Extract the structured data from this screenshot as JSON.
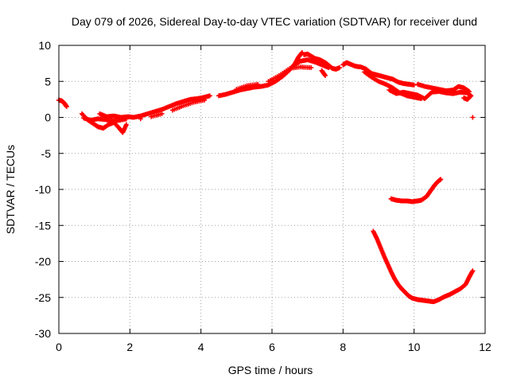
{
  "chart_data": {
    "type": "scatter",
    "title": "Day 079 of 2026, Sidereal Day-to-day VTEC variation (SDTVAR) for receiver dund",
    "xlabel": "GPS time / hours",
    "ylabel": "SDTVAR / TECUs",
    "xlim": [
      0,
      12
    ],
    "ylim": [
      -30,
      10
    ],
    "x_ticks": [
      0,
      2,
      4,
      6,
      8,
      10,
      12
    ],
    "y_ticks": [
      10,
      5,
      0,
      -5,
      -10,
      -15,
      -20,
      -25,
      -30
    ],
    "grid": true,
    "marker": "+",
    "color": "#ff0000",
    "series": [
      {
        "name": "SDTVAR",
        "points": [
          [
            0.0,
            2.4
          ],
          [
            0.08,
            2.3
          ],
          [
            0.15,
            2.0
          ],
          [
            0.22,
            1.5
          ],
          [
            0.65,
            0.5
          ],
          [
            0.8,
            -0.3
          ],
          [
            0.95,
            -0.8
          ],
          [
            1.1,
            -1.3
          ],
          [
            1.25,
            -1.5
          ],
          [
            1.4,
            -1.0
          ],
          [
            1.55,
            -0.7
          ],
          [
            1.7,
            -1.5
          ],
          [
            1.8,
            -2.1
          ],
          [
            1.9,
            -1.0
          ],
          [
            0.7,
            -0.1
          ],
          [
            0.9,
            -0.4
          ],
          [
            1.1,
            -0.2
          ],
          [
            1.3,
            -0.3
          ],
          [
            1.5,
            -0.5
          ],
          [
            1.7,
            -0.4
          ],
          [
            1.9,
            -0.2
          ],
          [
            1.15,
            0.5
          ],
          [
            1.35,
            0.1
          ],
          [
            1.55,
            0.2
          ],
          [
            1.75,
            0.0
          ],
          [
            1.95,
            0.1
          ],
          [
            2.1,
            0.0
          ],
          [
            2.3,
            0.2
          ],
          [
            2.5,
            0.5
          ],
          [
            2.7,
            0.8
          ],
          [
            2.9,
            1.1
          ],
          [
            3.1,
            1.5
          ],
          [
            3.3,
            1.9
          ],
          [
            3.5,
            2.2
          ],
          [
            3.7,
            2.5
          ],
          [
            3.9,
            2.6
          ],
          [
            4.1,
            2.8
          ],
          [
            4.25,
            3.0
          ],
          [
            2.3,
            -0.2
          ],
          [
            2.6,
            0.1
          ],
          [
            2.9,
            0.5
          ],
          [
            3.2,
            1.0
          ],
          [
            3.5,
            1.6
          ],
          [
            3.8,
            2.1
          ],
          [
            4.1,
            2.4
          ],
          [
            4.5,
            3.0
          ],
          [
            4.7,
            3.2
          ],
          [
            4.9,
            3.5
          ],
          [
            5.1,
            3.8
          ],
          [
            5.3,
            4.0
          ],
          [
            5.5,
            4.2
          ],
          [
            5.7,
            4.3
          ],
          [
            5.9,
            4.5
          ],
          [
            6.1,
            5.0
          ],
          [
            6.3,
            5.7
          ],
          [
            6.5,
            6.6
          ],
          [
            6.65,
            7.5
          ],
          [
            6.75,
            8.4
          ],
          [
            6.85,
            9.0
          ],
          [
            5.0,
            3.9
          ],
          [
            5.3,
            4.4
          ],
          [
            5.6,
            4.6
          ],
          [
            5.9,
            5.0
          ],
          [
            6.2,
            5.8
          ],
          [
            6.5,
            6.8
          ],
          [
            6.8,
            7.0
          ],
          [
            7.1,
            6.9
          ],
          [
            7.4,
            6.5
          ],
          [
            7.5,
            5.8
          ],
          [
            6.9,
            8.7
          ],
          [
            7.0,
            8.8
          ],
          [
            7.1,
            8.5
          ],
          [
            7.2,
            8.2
          ],
          [
            7.35,
            8.0
          ],
          [
            7.5,
            7.6
          ],
          [
            7.6,
            7.2
          ],
          [
            7.7,
            6.8
          ],
          [
            7.8,
            6.7
          ],
          [
            7.9,
            6.9
          ],
          [
            6.6,
            7.2
          ],
          [
            6.8,
            7.8
          ],
          [
            7.0,
            8.0
          ],
          [
            7.2,
            7.7
          ],
          [
            7.4,
            7.3
          ],
          [
            7.6,
            6.9
          ],
          [
            8.0,
            7.3
          ],
          [
            8.1,
            7.6
          ],
          [
            8.2,
            7.4
          ],
          [
            8.35,
            7.1
          ],
          [
            8.5,
            7.0
          ],
          [
            8.65,
            6.7
          ],
          [
            8.8,
            6.1
          ],
          [
            8.95,
            5.9
          ],
          [
            9.1,
            5.7
          ],
          [
            9.25,
            5.5
          ],
          [
            9.4,
            5.3
          ],
          [
            9.55,
            4.9
          ],
          [
            9.7,
            4.7
          ],
          [
            9.85,
            4.6
          ],
          [
            10.0,
            4.5
          ],
          [
            8.6,
            6.3
          ],
          [
            8.8,
            5.6
          ],
          [
            9.0,
            5.0
          ],
          [
            9.2,
            4.6
          ],
          [
            9.4,
            4.1
          ],
          [
            9.6,
            3.4
          ],
          [
            9.8,
            3.0
          ],
          [
            10.0,
            2.8
          ],
          [
            10.2,
            2.6
          ],
          [
            9.3,
            3.8
          ],
          [
            9.5,
            3.3
          ],
          [
            9.7,
            3.5
          ],
          [
            9.9,
            3.3
          ],
          [
            10.1,
            3.1
          ],
          [
            10.3,
            2.6
          ],
          [
            10.5,
            3.5
          ],
          [
            10.7,
            3.6
          ],
          [
            10.9,
            3.4
          ],
          [
            11.1,
            3.3
          ],
          [
            11.3,
            3.5
          ],
          [
            11.5,
            3.4
          ],
          [
            11.6,
            3.0
          ],
          [
            11.5,
            2.5
          ],
          [
            11.4,
            2.7
          ],
          [
            10.1,
            4.6
          ],
          [
            10.3,
            4.3
          ],
          [
            10.5,
            4.1
          ],
          [
            10.7,
            3.9
          ],
          [
            10.9,
            3.7
          ],
          [
            11.1,
            3.8
          ],
          [
            11.25,
            4.3
          ],
          [
            11.4,
            4.1
          ],
          [
            11.55,
            3.6
          ],
          [
            11.65,
            0.0
          ],
          [
            9.35,
            -11.3
          ],
          [
            9.5,
            -11.5
          ],
          [
            9.65,
            -11.6
          ],
          [
            9.8,
            -11.6
          ],
          [
            9.95,
            -11.7
          ],
          [
            10.1,
            -11.6
          ],
          [
            10.2,
            -11.5
          ],
          [
            10.35,
            -11.0
          ],
          [
            10.45,
            -10.3
          ],
          [
            10.55,
            -9.6
          ],
          [
            10.65,
            -9.0
          ],
          [
            10.75,
            -8.6
          ],
          [
            8.85,
            -15.8
          ],
          [
            8.95,
            -16.8
          ],
          [
            9.05,
            -18.0
          ],
          [
            9.15,
            -19.2
          ],
          [
            9.25,
            -20.3
          ],
          [
            9.35,
            -21.4
          ],
          [
            9.45,
            -22.4
          ],
          [
            9.55,
            -23.2
          ],
          [
            9.65,
            -23.8
          ],
          [
            9.75,
            -24.3
          ],
          [
            9.85,
            -24.8
          ],
          [
            9.95,
            -25.1
          ],
          [
            10.1,
            -25.3
          ],
          [
            10.25,
            -25.4
          ],
          [
            10.4,
            -25.5
          ],
          [
            10.55,
            -25.6
          ],
          [
            10.7,
            -25.3
          ],
          [
            10.85,
            -24.9
          ],
          [
            11.0,
            -24.6
          ],
          [
            11.15,
            -24.2
          ],
          [
            11.3,
            -23.8
          ],
          [
            11.45,
            -23.2
          ],
          [
            11.55,
            -22.2
          ],
          [
            11.65,
            -21.3
          ]
        ]
      }
    ]
  }
}
